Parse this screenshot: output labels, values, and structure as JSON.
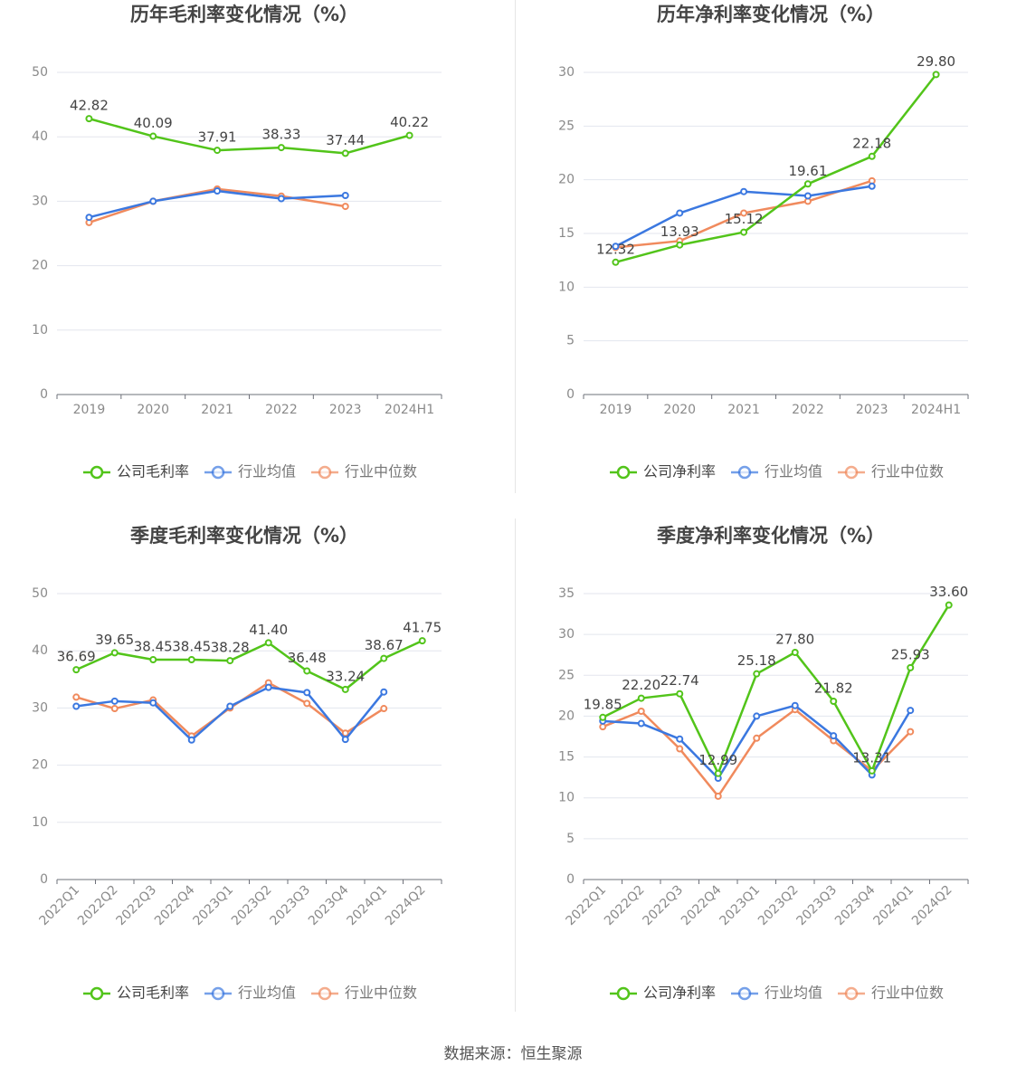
{
  "source_note": "数据来源：恒生聚源",
  "colors": {
    "company": "#52c41a",
    "avg": "#3b78e0",
    "median": "#f08a5d"
  },
  "chart_data": [
    {
      "type": "line",
      "title": "历年毛利率变化情况（%）",
      "categories": [
        "2019",
        "2020",
        "2021",
        "2022",
        "2023",
        "2024H1"
      ],
      "ylim": [
        0,
        50
      ],
      "yticks": [
        0,
        10,
        20,
        30,
        40,
        50
      ],
      "series": [
        {
          "name": "公司毛利率",
          "key": "company",
          "values": [
            42.82,
            40.09,
            37.91,
            38.33,
            37.44,
            40.22
          ],
          "labels": [
            "42.82",
            "40.09",
            "37.91",
            "38.33",
            "37.44",
            "40.22"
          ]
        },
        {
          "name": "行业均值",
          "key": "avg",
          "values": [
            27.5,
            30.0,
            31.6,
            30.4,
            30.9,
            null
          ]
        },
        {
          "name": "行业中位数",
          "key": "median",
          "values": [
            26.7,
            30.0,
            31.9,
            30.8,
            29.2,
            null
          ]
        }
      ],
      "legend_position": "bottom"
    },
    {
      "type": "line",
      "title": "历年净利率变化情况（%）",
      "categories": [
        "2019",
        "2020",
        "2021",
        "2022",
        "2023",
        "2024H1"
      ],
      "ylim": [
        0,
        30
      ],
      "yticks": [
        0,
        5,
        10,
        15,
        20,
        25,
        30
      ],
      "series": [
        {
          "name": "公司净利率",
          "key": "company",
          "values": [
            12.32,
            13.93,
            15.12,
            19.61,
            22.18,
            29.8
          ],
          "labels": [
            "12.32",
            "13.93",
            "15.12",
            "19.61",
            "22.18",
            "29.80"
          ]
        },
        {
          "name": "行业均值",
          "key": "avg",
          "values": [
            13.8,
            16.9,
            18.9,
            18.5,
            19.4,
            null
          ]
        },
        {
          "name": "行业中位数",
          "key": "median",
          "values": [
            13.7,
            14.3,
            16.9,
            18.0,
            19.9,
            null
          ]
        }
      ],
      "legend_position": "bottom"
    },
    {
      "type": "line",
      "title": "季度毛利率变化情况（%）",
      "categories": [
        "2022Q1",
        "2022Q2",
        "2022Q3",
        "2022Q4",
        "2023Q1",
        "2023Q2",
        "2023Q3",
        "2023Q4",
        "2024Q1",
        "2024Q2"
      ],
      "ylim": [
        0,
        50
      ],
      "yticks": [
        0,
        10,
        20,
        30,
        40,
        50
      ],
      "series": [
        {
          "name": "公司毛利率",
          "key": "company",
          "values": [
            36.69,
            39.65,
            38.45,
            38.45,
            38.28,
            41.4,
            36.48,
            33.24,
            38.67,
            41.75
          ],
          "labels": [
            "36.69",
            "39.65",
            "38.45",
            "38.45",
            "38.28",
            "41.40",
            "36.48",
            "33.24",
            "38.67",
            "41.75"
          ]
        },
        {
          "name": "行业均值",
          "key": "avg",
          "values": [
            30.3,
            31.2,
            30.9,
            24.4,
            30.3,
            33.6,
            32.7,
            24.5,
            32.8,
            null
          ]
        },
        {
          "name": "行业中位数",
          "key": "median",
          "values": [
            31.9,
            29.9,
            31.4,
            25.1,
            30.0,
            34.4,
            30.8,
            25.6,
            29.9,
            null
          ]
        }
      ],
      "legend_position": "bottom"
    },
    {
      "type": "line",
      "title": "季度净利率变化情况（%）",
      "categories": [
        "2022Q1",
        "2022Q2",
        "2022Q3",
        "2022Q4",
        "2023Q1",
        "2023Q2",
        "2023Q3",
        "2023Q4",
        "2024Q1",
        "2024Q2"
      ],
      "ylim": [
        0,
        35
      ],
      "yticks": [
        0,
        5,
        10,
        15,
        20,
        25,
        30,
        35
      ],
      "series": [
        {
          "name": "公司净利率",
          "key": "company",
          "values": [
            19.85,
            22.2,
            22.74,
            12.99,
            25.18,
            27.8,
            21.82,
            13.31,
            25.93,
            33.6
          ],
          "labels": [
            "19.85",
            "22.20",
            "22.74",
            "12.99",
            "25.18",
            "27.80",
            "21.82",
            "13.31",
            "25.93",
            "33.60"
          ]
        },
        {
          "name": "行业均值",
          "key": "avg",
          "values": [
            19.4,
            19.1,
            17.2,
            12.4,
            20.0,
            21.3,
            17.6,
            12.8,
            20.7,
            null
          ]
        },
        {
          "name": "行业中位数",
          "key": "median",
          "values": [
            18.7,
            20.6,
            16.0,
            10.2,
            17.3,
            20.8,
            17.0,
            13.3,
            18.1,
            null
          ]
        }
      ],
      "legend_position": "bottom"
    }
  ]
}
